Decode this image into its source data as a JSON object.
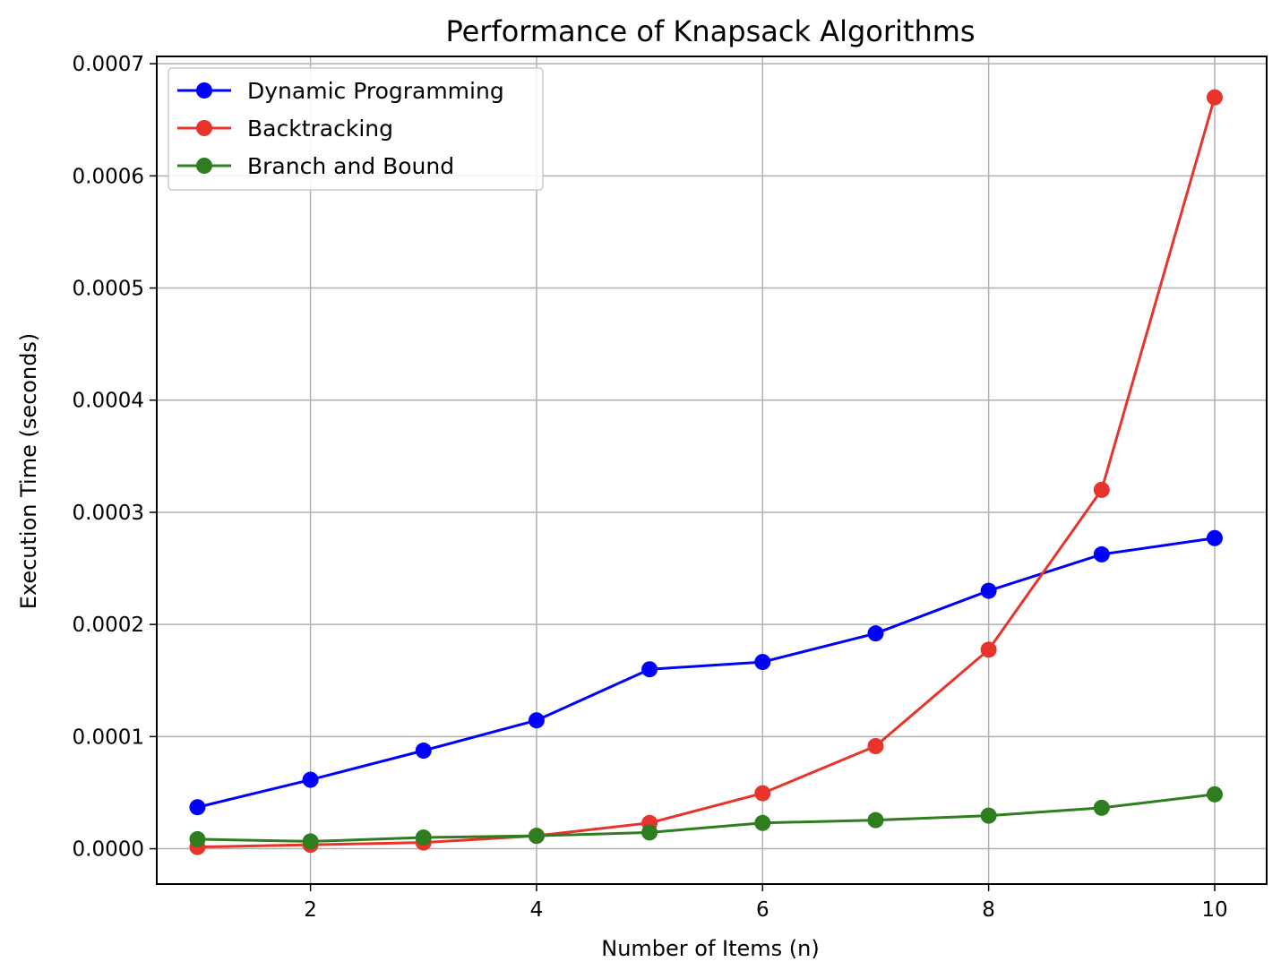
{
  "chart_data": {
    "type": "line",
    "title": "Performance of Knapsack Algorithms",
    "xlabel": "Number of Items (n)",
    "ylabel": "Execution Time (seconds)",
    "x": [
      1,
      2,
      3,
      4,
      5,
      6,
      7,
      8,
      9,
      10
    ],
    "xlim": [
      0.64,
      10.46
    ],
    "ylim": [
      -3.15e-05,
      0.0007065
    ],
    "xticks": [
      2,
      4,
      6,
      8,
      10
    ],
    "xtick_labels": [
      "2",
      "4",
      "6",
      "8",
      "10"
    ],
    "yticks": [
      0,
      0.0001,
      0.0002,
      0.0003,
      0.0004,
      0.0005,
      0.0006,
      0.0007
    ],
    "ytick_labels": [
      "0.0000",
      "0.0001",
      "0.0002",
      "0.0003",
      "0.0004",
      "0.0005",
      "0.0006",
      "0.0007"
    ],
    "grid": true,
    "legend_position": "top-left",
    "series": [
      {
        "name": "Dynamic Programming",
        "color": "#0000ff",
        "values": [
          3.7e-05,
          6.15e-05,
          8.75e-05,
          0.0001145,
          0.00016,
          0.0001665,
          0.000192,
          0.00023,
          0.0002625,
          0.000277
        ]
      },
      {
        "name": "Backtracking",
        "color": "#e8342b",
        "values": [
          1.5e-06,
          3.5e-06,
          5.5e-06,
          1.15e-05,
          2.3e-05,
          4.95e-05,
          9.15e-05,
          0.0001775,
          0.00032,
          0.00067
        ]
      },
      {
        "name": "Branch and Bound",
        "color": "#2e7d1e",
        "values": [
          8.5e-06,
          6.5e-06,
          1e-05,
          1.15e-05,
          1.45e-05,
          2.3e-05,
          2.55e-05,
          2.95e-05,
          3.65e-05,
          4.85e-05
        ]
      }
    ]
  }
}
